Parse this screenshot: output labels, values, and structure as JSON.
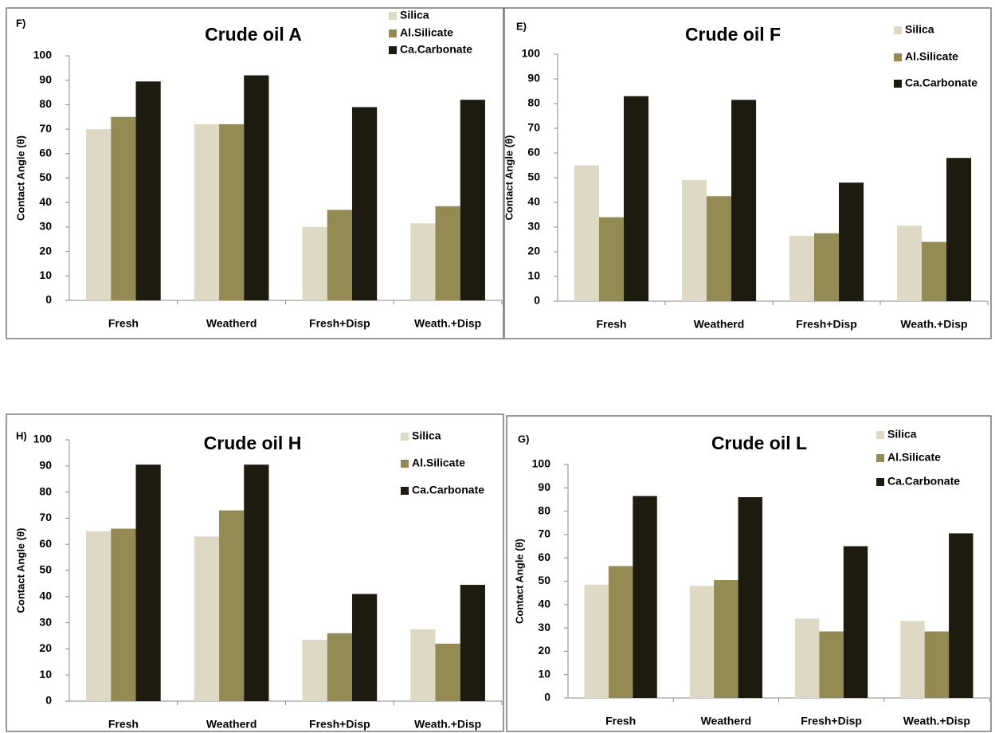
{
  "chart_data": [
    {
      "type": "bar",
      "panel_label": "F)",
      "title": "Crude oil A",
      "y_label": "Contact Angle (θ)",
      "categories": [
        "Fresh",
        "Weatherd",
        "Fresh+Disp",
        "Weath.+Disp"
      ],
      "series": [
        {
          "name": "Silica",
          "color": "#ddd9c4",
          "values": [
            70,
            72,
            30,
            31.5
          ]
        },
        {
          "name": "Al.Silicate",
          "color": "#948a54",
          "values": [
            75,
            72,
            37,
            38.5
          ]
        },
        {
          "name": "Ca.Carbonate",
          "color": "#1d1b10",
          "values": [
            89.5,
            92,
            79,
            82
          ]
        }
      ],
      "ylim": [
        0,
        100
      ],
      "yticks": [
        0,
        10,
        20,
        30,
        40,
        50,
        60,
        70,
        80,
        90,
        100
      ]
    },
    {
      "type": "bar",
      "panel_label": "E)",
      "title": "Crude oil F",
      "y_label": "Contact Angle (θ)",
      "categories": [
        "Fresh",
        "Weatherd",
        "Fresh+Disp",
        "Weath.+Disp"
      ],
      "series": [
        {
          "name": "Silica",
          "color": "#ddd9c4",
          "values": [
            55,
            49,
            26.5,
            30.5
          ]
        },
        {
          "name": "Al.Silicate",
          "color": "#948a54",
          "values": [
            34,
            42.5,
            27.5,
            24
          ]
        },
        {
          "name": "Ca.Carbonate",
          "color": "#1d1b10",
          "values": [
            83,
            81.5,
            48,
            58
          ]
        }
      ],
      "ylim": [
        0,
        100
      ],
      "yticks": [
        0,
        10,
        20,
        30,
        40,
        50,
        60,
        70,
        80,
        90,
        100
      ]
    },
    {
      "type": "bar",
      "panel_label": "H)",
      "title": "Crude oil H",
      "y_label": "Contact Angle (θ)",
      "categories": [
        "Fresh",
        "Weatherd",
        "Fresh+Disp",
        "Weath.+Disp"
      ],
      "series": [
        {
          "name": "Silica",
          "color": "#ddd9c4",
          "values": [
            65,
            63,
            23.5,
            27.5
          ]
        },
        {
          "name": "Al.Silicate",
          "color": "#948a54",
          "values": [
            66,
            73,
            26,
            22
          ]
        },
        {
          "name": "Ca.Carbonate",
          "color": "#1d1b10",
          "values": [
            90.5,
            90.5,
            41,
            44.5
          ]
        }
      ],
      "ylim": [
        0,
        100
      ],
      "yticks": [
        0,
        10,
        20,
        30,
        40,
        50,
        60,
        70,
        80,
        90,
        100
      ]
    },
    {
      "type": "bar",
      "panel_label": "G)",
      "title": "Crude oil L",
      "y_label": "Contact Angle (θ)",
      "categories": [
        "Fresh",
        "Weatherd",
        "Fresh+Disp",
        "Weath.+Disp"
      ],
      "series": [
        {
          "name": "Silica",
          "color": "#ddd9c4",
          "values": [
            48.5,
            48,
            34,
            33
          ]
        },
        {
          "name": "Al.Silicate",
          "color": "#948a54",
          "values": [
            56.5,
            50.5,
            28.5,
            28.5
          ]
        },
        {
          "name": "Ca.Carbonate",
          "color": "#1d1b10",
          "values": [
            86.5,
            86,
            65,
            70.5
          ]
        }
      ],
      "ylim": [
        0,
        100
      ],
      "yticks": [
        0,
        10,
        20,
        30,
        40,
        50,
        60,
        70,
        80,
        90,
        100
      ]
    }
  ]
}
